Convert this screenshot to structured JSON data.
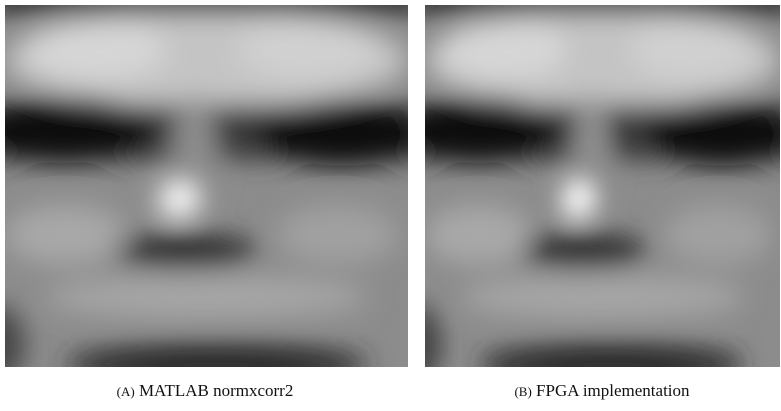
{
  "figures": [
    {
      "label": "(A)",
      "caption": "MATLAB normxcorr2"
    },
    {
      "label": "(B)",
      "caption": "FPGA implementation"
    }
  ]
}
